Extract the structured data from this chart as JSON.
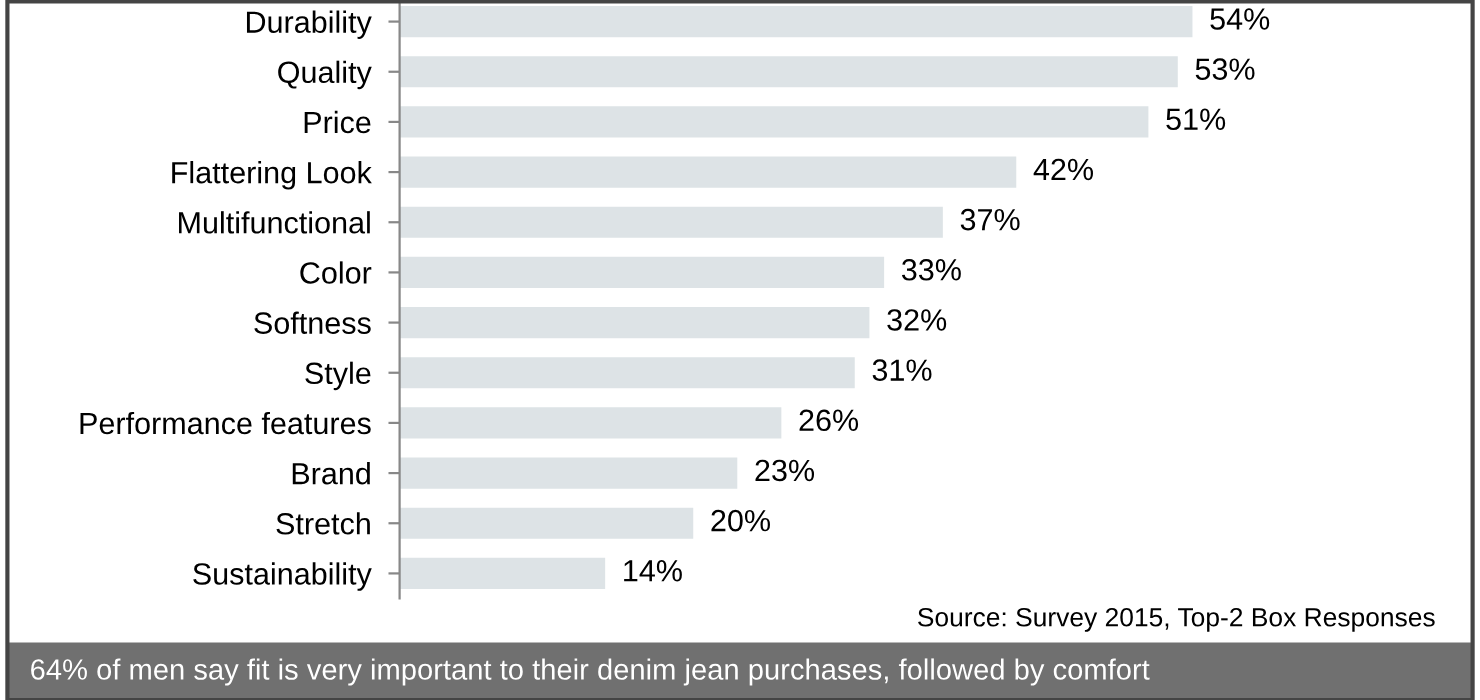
{
  "chart_data": {
    "type": "bar",
    "orientation": "horizontal",
    "categories": [
      "Durability",
      "Quality",
      "Price",
      "Flattering Look",
      "Multifunctional",
      "Color",
      "Softness",
      "Style",
      "Performance features",
      "Brand",
      "Stretch",
      "Sustainability"
    ],
    "values": [
      54,
      53,
      51,
      42,
      37,
      33,
      32,
      31,
      26,
      23,
      20,
      14
    ],
    "value_labels": [
      "54%",
      "53%",
      "51%",
      "42%",
      "37%",
      "33%",
      "32%",
      "31%",
      "26%",
      "23%",
      "20%",
      "14%"
    ],
    "color": "#dde3e6",
    "annotations": [
      "Source: Survey 2015, Top-2 Box Responses",
      "64% of men say fit is very important to their denim jean purchases, followed by comfort"
    ]
  }
}
